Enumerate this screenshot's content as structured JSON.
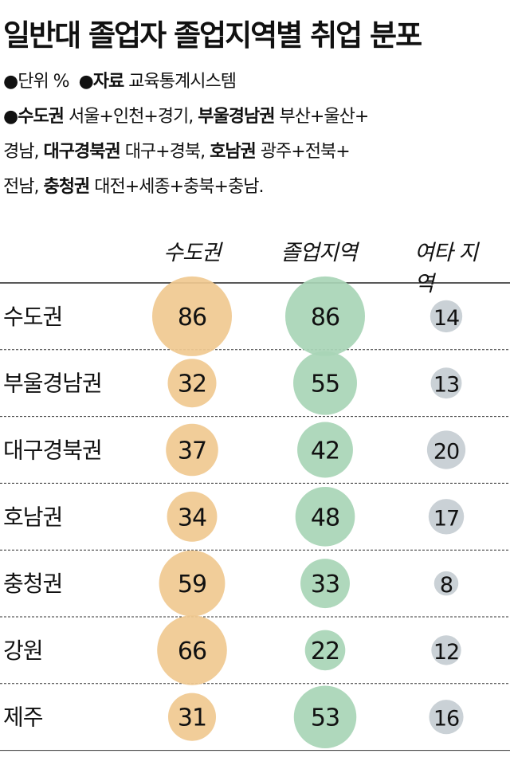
{
  "title": "일반대 졸업자 졸업지역별 취업 분포",
  "notes": {
    "bullet": "●",
    "unit": "단위 %",
    "source_label": "자료",
    "source": "교육통계시스템",
    "def1_label": "수도권",
    "def1": "서울+인천+경기,",
    "def2_label": "부울경남권",
    "def2a": "부산+울산+",
    "def2b": "경남,",
    "def3_label": "대구경북권",
    "def3": "대구+경북,",
    "def4_label": "호남권",
    "def4a": "광주+전북+",
    "def4b": "전남,",
    "def5_label": "충청권",
    "def5": "대전+세종+충북+충남."
  },
  "chart_data": {
    "type": "bubble-table",
    "title": "일반대 졸업자 졸업지역별 취업 분포",
    "unit": "%",
    "categories": [
      "수도권",
      "부울경남권",
      "대구경북권",
      "호남권",
      "충청권",
      "강원",
      "제주"
    ],
    "series": [
      {
        "name": "수도권",
        "color": "#f0c990",
        "values": [
          86,
          32,
          37,
          34,
          59,
          66,
          31
        ]
      },
      {
        "name": "졸업지역",
        "color": "#a8d5b6",
        "values": [
          86,
          55,
          42,
          48,
          33,
          22,
          53
        ]
      },
      {
        "name": "여타 지역",
        "color": "#c6cdd3",
        "values": [
          14,
          13,
          20,
          17,
          8,
          12,
          16
        ]
      }
    ]
  }
}
